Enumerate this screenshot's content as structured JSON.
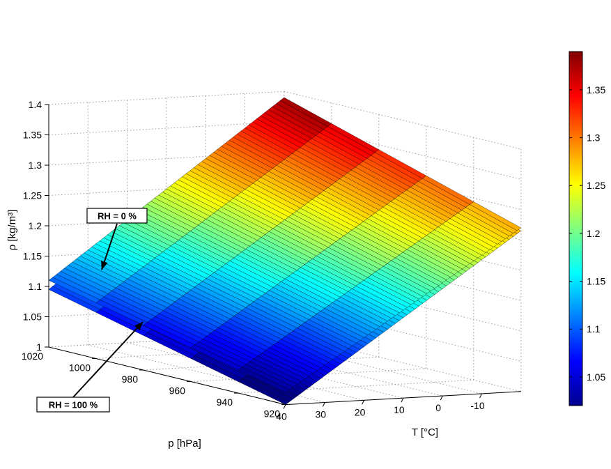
{
  "chart_data": {
    "type": "surface",
    "title": "",
    "x_axis": {
      "label": "T [°C]",
      "range": [
        -20,
        40
      ],
      "ticks": [
        40,
        30,
        20,
        10,
        0,
        -10
      ]
    },
    "y_axis": {
      "label": "p [hPa]",
      "range": [
        920,
        1020
      ],
      "ticks": [
        1020,
        1000,
        980,
        960,
        940,
        920
      ]
    },
    "z_axis": {
      "label": "ρ [kg/m³]",
      "range": [
        1.0,
        1.4
      ],
      "ticks": [
        "1",
        "1.05",
        "1.1",
        "1.15",
        "1.2",
        "1.25",
        "1.3",
        "1.35",
        "1.4"
      ]
    },
    "colorbar": {
      "range": [
        1.02,
        1.39
      ],
      "ticks": [
        "1.05",
        "1.1",
        "1.15",
        "1.2",
        "1.25",
        "1.3",
        "1.35"
      ],
      "colormap": "jet"
    },
    "grid": true,
    "series": [
      {
        "name": "RH = 0 %",
        "corners": {
          "p1020_T40": 1.11,
          "p920_T40": 1.02,
          "p1020_Tm20": 1.39,
          "p920_Tm20": 1.27
        }
      },
      {
        "name": "RH = 100 %",
        "corners": {
          "p1020_T40": 1.095,
          "p920_T40": 1.0,
          "p1020_Tm20": 1.385,
          "p920_Tm20": 1.265
        }
      }
    ],
    "annotations": [
      {
        "text": "RH = 0 %",
        "target": "RH = 0 %"
      },
      {
        "text": "RH = 100 %",
        "target": "RH = 100 %"
      }
    ]
  }
}
